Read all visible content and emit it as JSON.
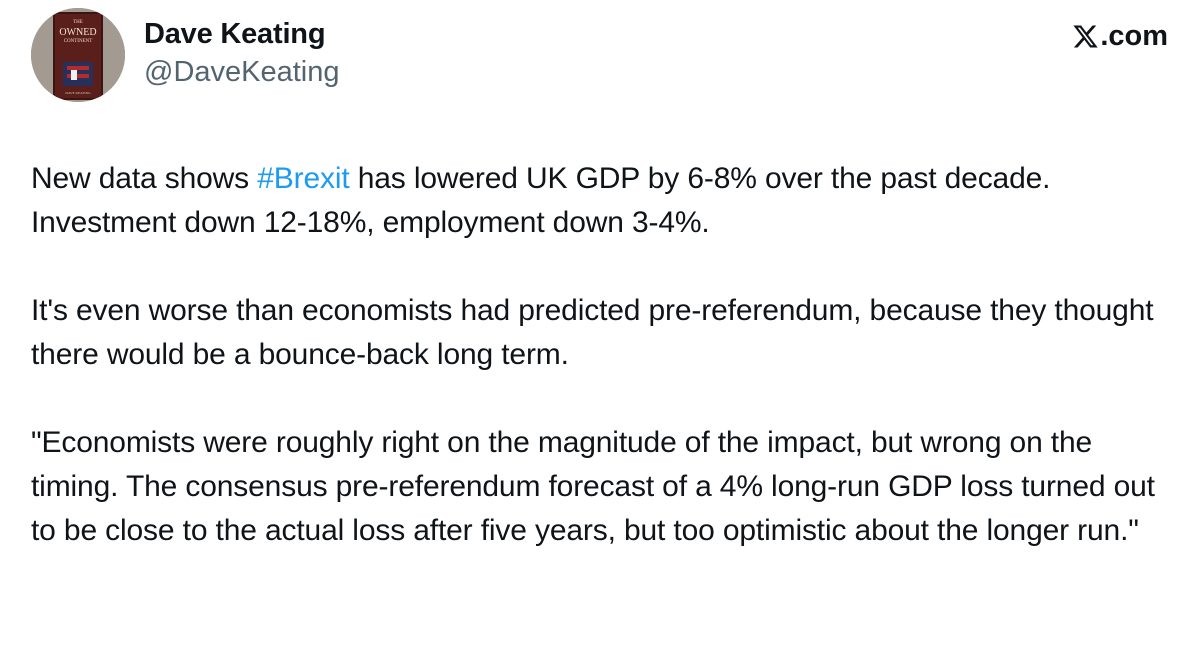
{
  "author": {
    "display_name": "Dave Keating",
    "handle": "@DaveKeating",
    "avatar_book": {
      "line1": "THE",
      "line2": "OWNED",
      "line3": "CONTINENT",
      "author": "DAVE KEATING"
    }
  },
  "brand": {
    "label": ".com",
    "icon": "x-logo-icon"
  },
  "tweet": {
    "para1": {
      "before": "New data shows ",
      "hashtag": "#Brexit",
      "after": " has lowered UK GDP by 6-8% over the past decade. Investment down 12-18%, employment down 3-4%."
    },
    "para2": "It's even worse than economists had predicted pre-referendum, because they thought there would be a bounce-back long term.",
    "para3": "\"Economists were roughly right on the magnitude of the impact, but wrong on the timing. The consensus pre-referendum forecast of a 4% long-run GDP loss turned out to be close to the actual loss after five years, but too optimistic about the longer run.\""
  },
  "colors": {
    "text": "#0f1419",
    "secondary": "#536471",
    "link": "#1d9bf0",
    "background": "#ffffff"
  }
}
